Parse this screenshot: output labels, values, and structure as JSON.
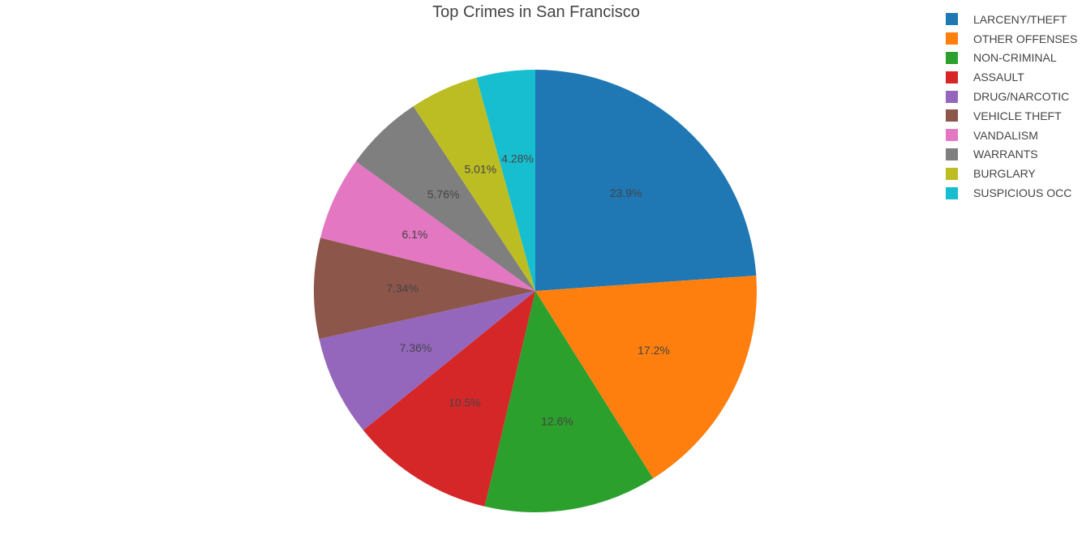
{
  "chart_data": {
    "type": "pie",
    "title": "Top Crimes in San Francisco",
    "legend_position": "top-right",
    "sort": "descending",
    "direction": "clockwise",
    "start_angle": "top",
    "slices": [
      {
        "label": "LARCENY/THEFT",
        "value": 23.9,
        "text": "23.9%",
        "color": "#1f77b4"
      },
      {
        "label": "OTHER OFFENSES",
        "value": 17.2,
        "text": "17.2%",
        "color": "#ff7f0e"
      },
      {
        "label": "NON-CRIMINAL",
        "value": 12.6,
        "text": "12.6%",
        "color": "#2ca02c"
      },
      {
        "label": "ASSAULT",
        "value": 10.5,
        "text": "10.5%",
        "color": "#d62728"
      },
      {
        "label": "DRUG/NARCOTIC",
        "value": 7.36,
        "text": "7.36%",
        "color": "#9467bd"
      },
      {
        "label": "VEHICLE THEFT",
        "value": 7.34,
        "text": "7.34%",
        "color": "#8c564b"
      },
      {
        "label": "VANDALISM",
        "value": 6.1,
        "text": "6.1%",
        "color": "#e377c2"
      },
      {
        "label": "WARRANTS",
        "value": 5.76,
        "text": "5.76%",
        "color": "#7f7f7f"
      },
      {
        "label": "BURGLARY",
        "value": 5.01,
        "text": "5.01%",
        "color": "#bcbd22"
      },
      {
        "label": "SUSPICIOUS OCC",
        "value": 4.28,
        "text": "4.28%",
        "color": "#17becf"
      }
    ]
  }
}
